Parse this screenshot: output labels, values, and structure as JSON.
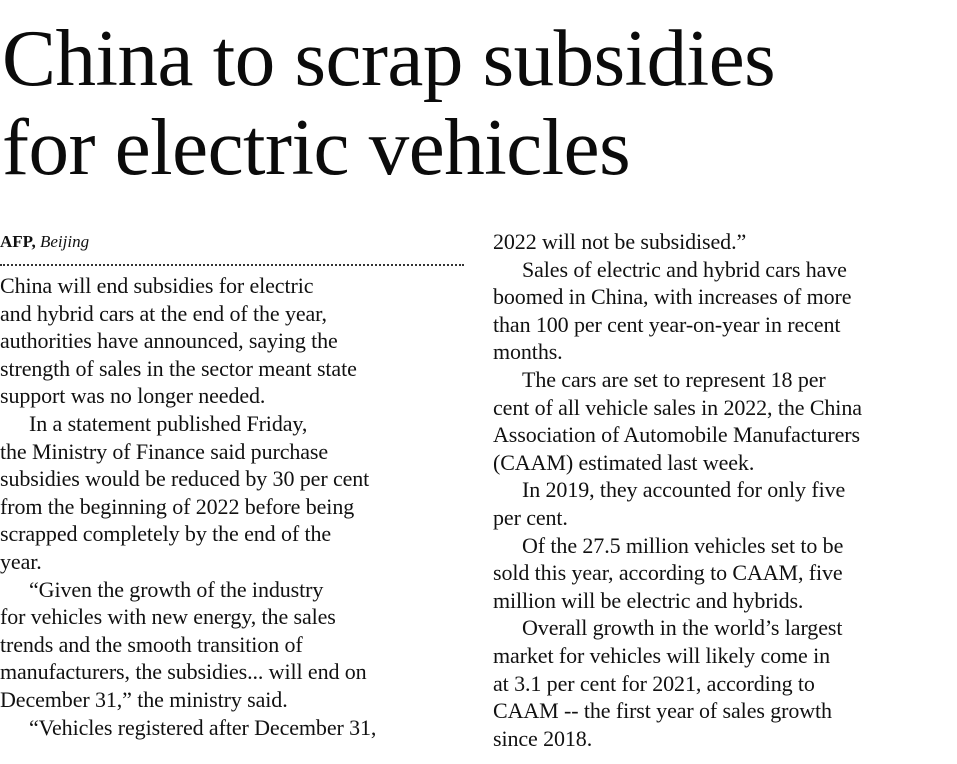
{
  "article": {
    "headline": [
      "China to scrap subsidies",
      "for electric vehicles"
    ],
    "byline": {
      "agency": "AFP,",
      "location": "Beijing"
    },
    "left_column": [
      {
        "indent": false,
        "lines": [
          "China will end subsidies for electric",
          "and hybrid cars at the end of the year,",
          "authorities have announced, saying the",
          "strength of sales in the sector meant state",
          "support was no longer needed."
        ]
      },
      {
        "indent": true,
        "lines": [
          "In a statement published Friday,",
          "the Ministry of Finance said purchase",
          "subsidies would be reduced by 30 per cent",
          "from the beginning of 2022 before being",
          "scrapped completely by the end of the",
          "year."
        ]
      },
      {
        "indent": true,
        "lines": [
          "“Given the growth of the industry",
          "for vehicles with new energy, the sales",
          "trends and the smooth transition of",
          "manufacturers, the subsidies... will end on",
          "December 31,” the ministry said."
        ]
      },
      {
        "indent": true,
        "lines": [
          "“Vehicles registered after December 31,"
        ]
      }
    ],
    "right_column": [
      {
        "indent": false,
        "lines": [
          "2022 will not be subsidised.”"
        ]
      },
      {
        "indent": true,
        "lines": [
          "Sales of electric and hybrid cars have",
          "boomed in China, with increases of more",
          "than 100 per cent year-on-year in recent",
          "months."
        ]
      },
      {
        "indent": true,
        "lines": [
          "The cars are set to represent 18 per",
          "cent of all vehicle sales in 2022, the China",
          "Association of Automobile Manufacturers",
          "(CAAM) estimated last week."
        ]
      },
      {
        "indent": true,
        "lines": [
          "In 2019, they accounted for only five",
          "per cent."
        ]
      },
      {
        "indent": true,
        "lines": [
          "Of the 27.5 million vehicles set to be",
          "sold this year, according to CAAM, five",
          "million will be electric and hybrids."
        ]
      },
      {
        "indent": true,
        "lines": [
          "Overall growth in the world’s largest",
          "market for vehicles will likely come in",
          "at 3.1 per cent for 2021, according to",
          "CAAM -- the first year of sales growth",
          "since 2018."
        ]
      }
    ]
  }
}
